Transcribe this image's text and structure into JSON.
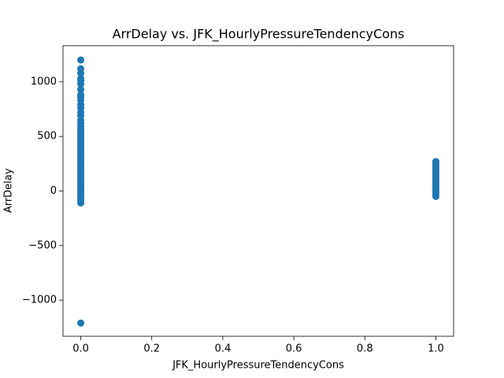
{
  "chart_data": {
    "type": "scatter",
    "title": "ArrDelay vs. JFK_HourlyPressureTendencyCons",
    "x_label": "JFK_HourlyPressureTendencyCons",
    "y_label": "ArrDelay",
    "xlim": [
      -0.05,
      1.05
    ],
    "ylim": [
      -1331,
      1331
    ],
    "xticks": [
      {
        "value": 0,
        "label": "0.0"
      },
      {
        "value": 0.2,
        "label": "0.2"
      },
      {
        "value": 0.4,
        "label": "0.4"
      },
      {
        "value": 0.6,
        "label": "0.6"
      },
      {
        "value": 0.8,
        "label": "0.8"
      },
      {
        "value": 1,
        "label": "1.0"
      }
    ],
    "yticks": [
      {
        "value": -1000,
        "label": "−1000"
      },
      {
        "value": -500,
        "label": "−500"
      },
      0,
      500,
      1000
    ],
    "series": [
      {
        "color": "#1f77b4",
        "x": [
          0,
          0,
          0,
          0,
          0,
          0,
          0,
          0,
          0,
          0,
          0,
          0,
          0,
          0,
          0,
          0,
          0,
          0,
          0,
          0,
          0,
          0,
          0,
          0,
          0,
          0,
          0,
          0,
          0,
          0,
          0,
          0,
          0,
          0,
          0,
          0,
          0,
          0,
          0,
          0,
          0,
          0,
          0,
          0,
          0,
          0,
          0,
          0,
          0,
          0,
          0,
          0,
          0,
          1,
          1,
          1,
          1,
          1,
          1,
          1,
          1,
          1,
          1,
          1,
          1,
          1,
          1,
          1,
          1,
          1
        ],
        "values": [
          -110,
          -90,
          -70,
          -50,
          -30,
          -10,
          10,
          30,
          50,
          70,
          90,
          110,
          130,
          150,
          170,
          190,
          210,
          230,
          250,
          270,
          290,
          310,
          330,
          350,
          370,
          390,
          410,
          430,
          450,
          470,
          490,
          510,
          530,
          550,
          570,
          590,
          620,
          650,
          690,
          720,
          760,
          790,
          830,
          860,
          880,
          930,
          980,
          1010,
          1030,
          1080,
          1120,
          1200,
          -1210,
          -50,
          -30,
          -10,
          10,
          30,
          50,
          70,
          90,
          110,
          130,
          150,
          170,
          190,
          210,
          230,
          250,
          270
        ]
      }
    ]
  }
}
